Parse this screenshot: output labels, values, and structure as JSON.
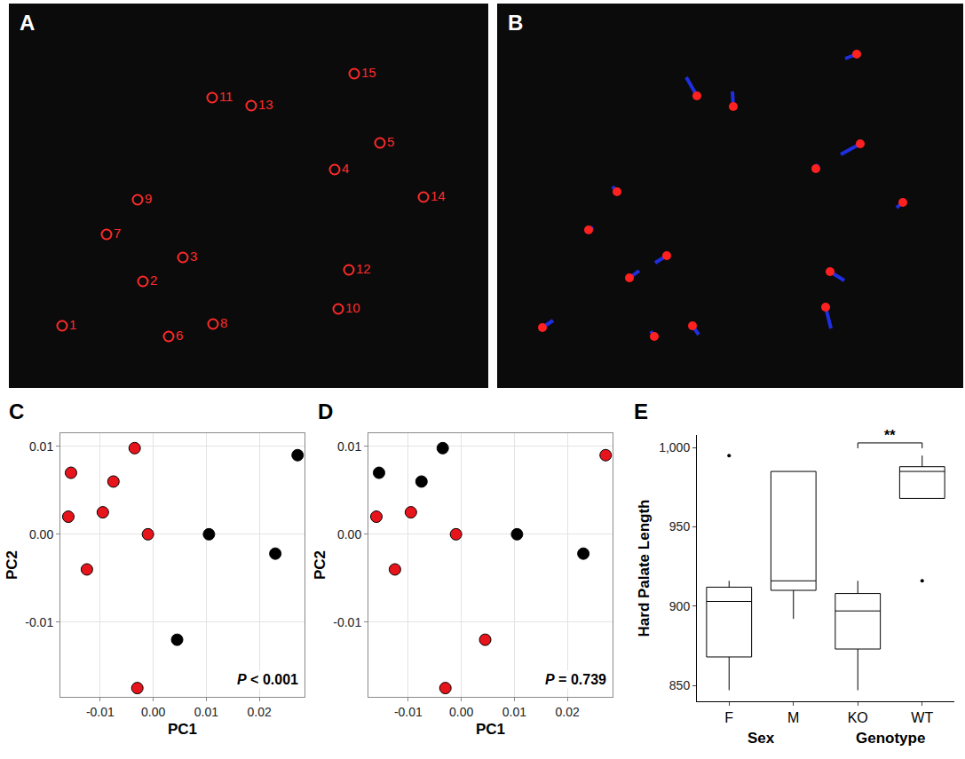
{
  "chart_data": [
    {
      "panel": "A",
      "type": "landmarks",
      "marker": "open circle",
      "color": "#ff2a2a",
      "labels": [
        "1",
        "2",
        "3",
        "4",
        "5",
        "6",
        "7",
        "8",
        "9",
        "10",
        "11",
        "12",
        "13",
        "14",
        "15"
      ],
      "x": [
        60,
        151,
        196,
        367,
        418,
        180,
        110,
        230,
        145,
        371,
        229,
        383,
        273,
        467,
        389
      ],
      "y": [
        363,
        313,
        286,
        187,
        157,
        375,
        260,
        361,
        221,
        344,
        106,
        300,
        115,
        218,
        79
      ],
      "xlim": [
        0,
        540
      ],
      "ylim": [
        433,
        0
      ],
      "tick_labels": false
    },
    {
      "panel": "B",
      "type": "vectors",
      "tick_labels": false,
      "xlim": [
        0,
        525
      ],
      "ylim": [
        433,
        0
      ],
      "series": [
        {
          "type": "vectors",
          "color": "#1f2fe0",
          "x": [
            51,
            149,
            191,
            359,
            409,
            177,
            103,
            220,
            135,
            370,
            225,
            375,
            266,
            457,
            405
          ],
          "y": [
            365,
            309,
            284,
            186,
            158,
            375,
            255,
            363,
            212,
            342,
            104,
            302,
            116,
            224,
            57
          ],
          "x_end": [
            63,
            160,
            178,
            361,
            387,
            173,
            108,
            227,
            130,
            376,
            213,
            391,
            265,
            450,
            392
          ],
          "y_end": [
            357,
            301,
            292,
            181,
            170,
            369,
            252,
            373,
            206,
            366,
            83,
            312,
            99,
            230,
            62
          ]
        },
        {
          "type": "scatter",
          "color": "#ff2020",
          "marker": "circle",
          "x": [
            51,
            149,
            191,
            359,
            409,
            177,
            103,
            220,
            135,
            370,
            225,
            375,
            266,
            457,
            405
          ],
          "y": [
            365,
            309,
            284,
            186,
            158,
            375,
            255,
            363,
            212,
            342,
            104,
            302,
            116,
            224,
            57
          ]
        }
      ]
    },
    {
      "panel": "C",
      "type": "scatter",
      "x_label": "PC1",
      "y_label": "PC2",
      "grid": true,
      "annotation": "P < 0.001",
      "xlim": [
        -0.0175,
        0.0285
      ],
      "ylim": [
        -0.0185,
        0.0115
      ],
      "xticks": [
        -0.01,
        {
          "value": 0,
          "label": "0.00"
        },
        0.01,
        0.02
      ],
      "yticks": [
        -0.01,
        {
          "value": 0,
          "label": "0.00"
        },
        0.01
      ],
      "series": [
        {
          "color": "#e8141c",
          "x": [
            -0.0155,
            -0.016,
            -0.0125,
            -0.0095,
            -0.0075,
            -0.0035,
            -0.001,
            -0.003
          ],
          "y": [
            0.007,
            0.002,
            -0.004,
            0.0025,
            0.006,
            0.0098,
            0.0,
            -0.0175
          ]
        },
        {
          "color": "#000000",
          "x": [
            0.0045,
            0.0105,
            0.023,
            0.0272
          ],
          "y": [
            -0.012,
            0.0,
            -0.0022,
            0.009
          ]
        }
      ]
    },
    {
      "panel": "D",
      "type": "scatter",
      "x_label": "PC1",
      "y_label": "PC2",
      "grid": true,
      "annotation": "P = 0.739",
      "xlim": [
        -0.0175,
        0.0285
      ],
      "ylim": [
        -0.0185,
        0.0115
      ],
      "xticks": [
        -0.01,
        {
          "value": 0,
          "label": "0.00"
        },
        0.01,
        0.02
      ],
      "yticks": [
        -0.01,
        {
          "value": 0,
          "label": "0.00"
        },
        0.01
      ],
      "series": [
        {
          "color": "#e8141c",
          "x": [
            -0.016,
            -0.0125,
            -0.0095,
            -0.001,
            -0.003,
            0.0045,
            0.0272
          ],
          "y": [
            0.002,
            -0.004,
            0.0025,
            0.0,
            -0.0175,
            -0.012,
            0.009
          ]
        },
        {
          "color": "#000000",
          "x": [
            -0.0155,
            -0.0075,
            -0.0035,
            0.0105,
            0.023
          ],
          "y": [
            0.007,
            0.006,
            0.0098,
            0.0,
            -0.0022
          ]
        }
      ]
    },
    {
      "panel": "E",
      "type": "box",
      "y_label": "Hard Palate Length",
      "grid": false,
      "categories": [
        "F",
        "M",
        "KO",
        "WT"
      ],
      "groups": [
        {
          "label": "Sex",
          "categories": [
            "F",
            "M"
          ]
        },
        {
          "label": "Genotype",
          "categories": [
            "KO",
            "WT"
          ]
        }
      ],
      "lower": [
        847,
        892,
        847,
        968
      ],
      "q1": [
        868,
        910,
        873,
        968
      ],
      "median": [
        903,
        916,
        897,
        985
      ],
      "q3": [
        912,
        985,
        908,
        988
      ],
      "upper": [
        916,
        985,
        916,
        995
      ],
      "outliers": [
        [
          995
        ],
        [],
        [],
        [
          916
        ]
      ],
      "ylim": [
        840,
        1008
      ],
      "yticks": [
        850,
        900,
        950,
        {
          "value": 1000,
          "label": "1,000"
        }
      ],
      "significance": {
        "from": "KO",
        "to": "WT",
        "label": "**",
        "y": 1003
      }
    }
  ]
}
